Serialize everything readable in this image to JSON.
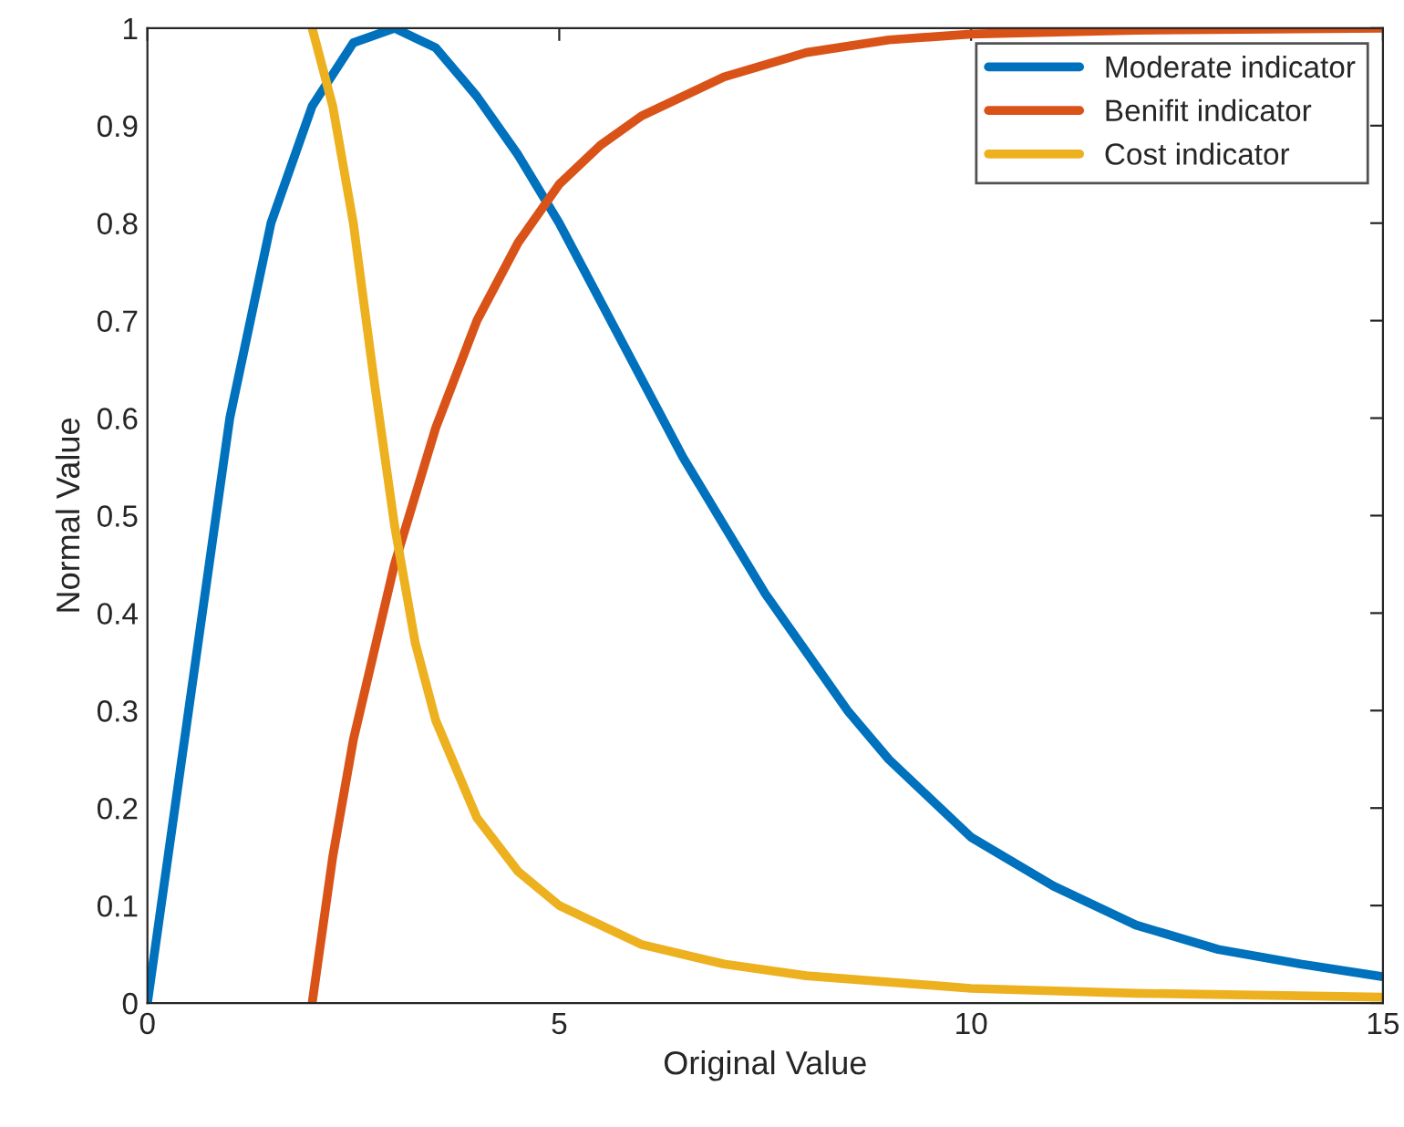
{
  "chart_data": {
    "type": "line",
    "xlabel": "Original Value",
    "ylabel": "Normal Value",
    "xlim": [
      0,
      15
    ],
    "ylim": [
      0,
      1
    ],
    "xticks": [
      0,
      5,
      10,
      15
    ],
    "yticks": [
      0,
      0.1,
      0.2,
      0.3,
      0.4,
      0.5,
      0.6,
      0.7,
      0.8,
      0.9,
      1
    ],
    "grid": false,
    "legend": "top right",
    "line_style": "solid",
    "marker": "none",
    "series": [
      {
        "name": "Moderate indicator",
        "color": "#0072bd",
        "x": [
          0,
          0.5,
          1,
          1.5,
          2,
          2.5,
          3,
          3.5,
          4,
          4.5,
          5,
          5.5,
          6,
          6.5,
          7,
          7.5,
          8,
          8.5,
          9,
          9.5,
          10,
          11,
          12,
          13,
          14,
          15
        ],
        "values": [
          0,
          0.3,
          0.6,
          0.8,
          0.92,
          0.985,
          1,
          0.98,
          0.93,
          0.87,
          0.8,
          0.72,
          0.64,
          0.56,
          0.49,
          0.42,
          0.36,
          0.3,
          0.25,
          0.21,
          0.17,
          0.12,
          0.08,
          0.055,
          0.04,
          0.027
        ]
      },
      {
        "name": "Benifit indicator",
        "color": "#d95319",
        "x": [
          2,
          2.25,
          2.5,
          3,
          3.5,
          4,
          4.5,
          5,
          5.5,
          6,
          7,
          8,
          9,
          10,
          12,
          15
        ],
        "values": [
          0,
          0.15,
          0.27,
          0.45,
          0.59,
          0.7,
          0.78,
          0.84,
          0.88,
          0.91,
          0.95,
          0.975,
          0.988,
          0.994,
          0.998,
          1
        ]
      },
      {
        "name": "Cost indicator",
        "color": "#edb120",
        "x": [
          2,
          2.25,
          2.5,
          2.75,
          3,
          3.25,
          3.5,
          4,
          4.5,
          5,
          6,
          7,
          8,
          10,
          12,
          15
        ],
        "values": [
          1,
          0.92,
          0.8,
          0.64,
          0.49,
          0.37,
          0.29,
          0.19,
          0.135,
          0.1,
          0.06,
          0.04,
          0.028,
          0.015,
          0.01,
          0.006
        ]
      }
    ]
  }
}
